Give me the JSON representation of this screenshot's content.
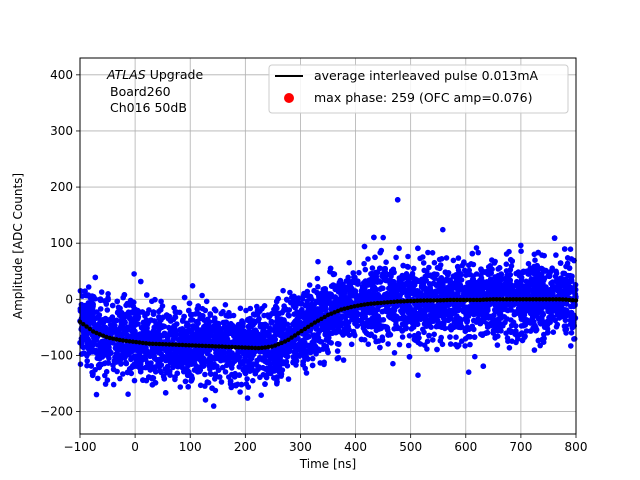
{
  "chart_data": {
    "type": "scatter",
    "xlabel": "Time [ns]",
    "ylabel": "Amplitude [ADC Counts]",
    "xlim": [
      -100,
      800
    ],
    "ylim": [
      -240,
      430
    ],
    "xticks": [
      -100,
      0,
      100,
      200,
      300,
      400,
      500,
      600,
      700,
      800
    ],
    "yticks": [
      -200,
      -100,
      0,
      100,
      200,
      300,
      400
    ],
    "grid": true,
    "legend_position": "top-right",
    "annotation": {
      "line1_italic": "ATLAS",
      "line1_rest": " Upgrade",
      "line2": "Board260",
      "line3": "Ch016 50dB"
    },
    "legend": [
      {
        "label": "average interleaved pulse 0.013mA",
        "color": "#000000",
        "marker": "line"
      },
      {
        "label": "max phase: 259 (OFC amp=0.076)",
        "color": "#ff0000",
        "marker": "circle"
      }
    ],
    "series": [
      {
        "kind": "average",
        "color": "#000000",
        "x": [
          -100,
          -75,
          -50,
          -25,
          0,
          25,
          50,
          75,
          100,
          125,
          150,
          175,
          200,
          225,
          250,
          275,
          300,
          325,
          350,
          375,
          400,
          425,
          450,
          475,
          500,
          525,
          550,
          575,
          600,
          625,
          650,
          675,
          700,
          725,
          750,
          775,
          800
        ],
        "y": [
          -40,
          -58,
          -68,
          -73,
          -76,
          -79,
          -80,
          -81,
          -82,
          -83,
          -84,
          -85,
          -86,
          -87,
          -84,
          -74,
          -58,
          -42,
          -28,
          -18,
          -12,
          -8,
          -6,
          -4,
          -3,
          -2,
          -2,
          -1,
          -1,
          -1,
          0,
          0,
          0,
          0,
          0,
          0,
          -2
        ]
      },
      {
        "kind": "samples",
        "color": "#0000ff",
        "noise_sigma": 33
      }
    ]
  }
}
